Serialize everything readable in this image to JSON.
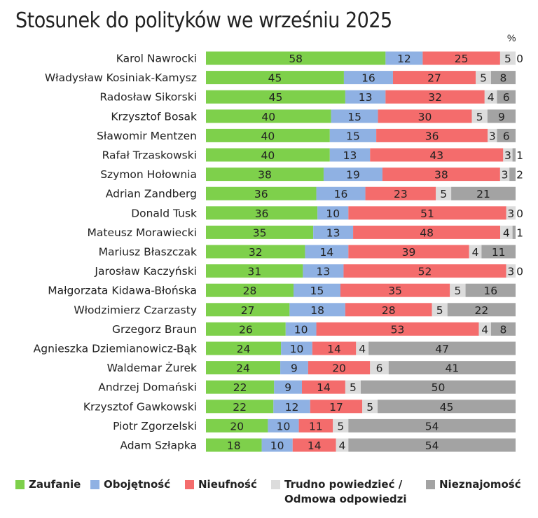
{
  "title": "Stosunek do polityków we wrześniu 2025",
  "unit": "%",
  "colors": {
    "zaufanie": "#7ed04b",
    "obojetnosc": "#8fb1e3",
    "nieufnosc": "#f46c6c",
    "trudno": "#dcdcdc",
    "nieznajomosc": "#a3a3a3"
  },
  "legend": [
    {
      "key": "zaufanie",
      "label": "Zaufanie",
      "label2": ""
    },
    {
      "key": "obojetnosc",
      "label": "Obojętność",
      "label2": ""
    },
    {
      "key": "nieufnosc",
      "label": "Nieufność",
      "label2": ""
    },
    {
      "key": "trudno",
      "label": "Trudno powiedzieć /",
      "label2": "Odmowa odpowiedzi"
    },
    {
      "key": "nieznajomosc",
      "label": "Nieznajomość",
      "label2": ""
    }
  ],
  "chart_data": {
    "type": "bar",
    "orientation": "horizontal",
    "stacked": true,
    "title": "Stosunek do polityków we wrześniu 2025",
    "unit": "%",
    "xlim": [
      0,
      100
    ],
    "grid": false,
    "legend_position": "bottom",
    "categories": [
      "Karol Nawrocki",
      "Władysław Kosiniak-Kamysz",
      "Radosław Sikorski",
      "Krzysztof Bosak",
      "Sławomir Mentzen",
      "Rafał Trzaskowski",
      "Szymon Hołownia",
      "Adrian Zandberg",
      "Donald Tusk",
      "Mateusz Morawiecki",
      "Mariusz Błaszczak",
      "Jarosław Kaczyński",
      "Małgorzata Kidawa-Błońska",
      "Włodzimierz Czarzasty",
      "Grzegorz Braun",
      "Agnieszka Dziemianowicz-Bąk",
      "Waldemar Żurek",
      "Andrzej Domański",
      "Krzysztof Gawkowski",
      "Piotr Zgorzelski",
      "Adam Szłapka"
    ],
    "series": [
      {
        "name": "Zaufanie",
        "key": "zaufanie",
        "values": [
          58,
          45,
          45,
          40,
          40,
          40,
          38,
          36,
          36,
          35,
          32,
          31,
          28,
          27,
          26,
          24,
          24,
          22,
          22,
          20,
          18
        ]
      },
      {
        "name": "Obojętność",
        "key": "obojetnosc",
        "values": [
          12,
          16,
          13,
          15,
          15,
          13,
          19,
          16,
          10,
          13,
          14,
          13,
          15,
          18,
          10,
          10,
          9,
          9,
          12,
          10,
          10
        ]
      },
      {
        "name": "Nieufność",
        "key": "nieufnosc",
        "values": [
          25,
          27,
          32,
          30,
          36,
          43,
          38,
          23,
          51,
          48,
          39,
          52,
          35,
          28,
          53,
          14,
          20,
          14,
          17,
          11,
          14
        ]
      },
      {
        "name": "Trudno powiedzieć / Odmowa odpowiedzi",
        "key": "trudno",
        "values": [
          5,
          5,
          4,
          5,
          3,
          3,
          3,
          5,
          3,
          4,
          4,
          3,
          5,
          5,
          4,
          4,
          6,
          5,
          5,
          5,
          4
        ]
      },
      {
        "name": "Nieznajomość",
        "key": "nieznajomosc",
        "values": [
          0,
          8,
          6,
          9,
          6,
          1,
          2,
          21,
          0,
          1,
          11,
          0,
          16,
          22,
          8,
          47,
          41,
          50,
          45,
          54,
          54
        ]
      }
    ]
  }
}
